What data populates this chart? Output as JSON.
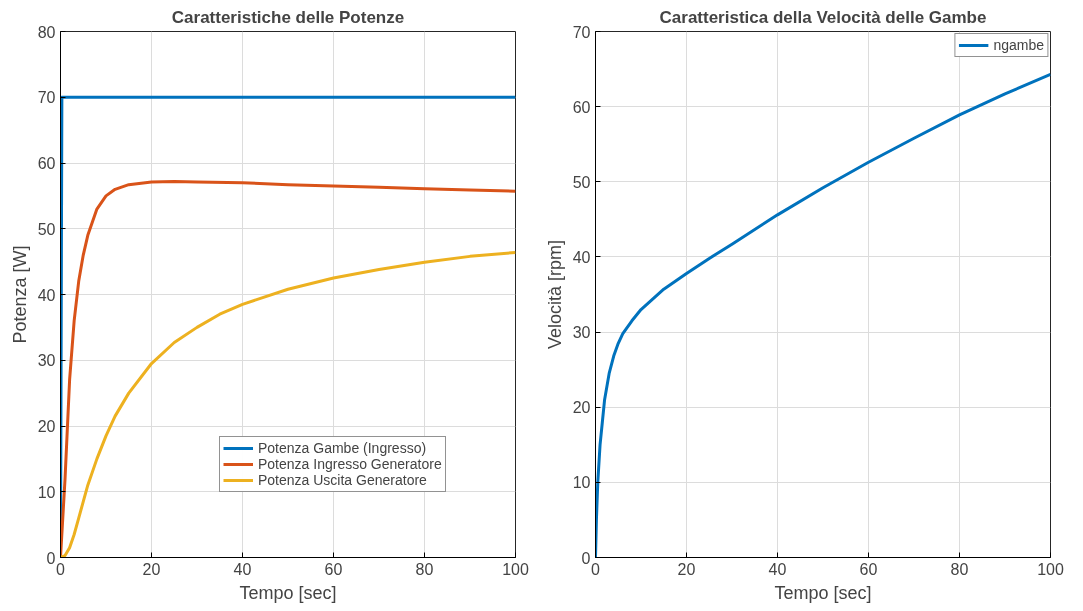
{
  "chart_data": [
    {
      "type": "line",
      "title": "Caratteristiche delle Potenze",
      "xlabel": "Tempo [sec]",
      "ylabel": "Potenza [W]",
      "xlim": [
        0,
        100
      ],
      "ylim": [
        0,
        80
      ],
      "xticks": [
        0,
        20,
        40,
        60,
        80,
        100
      ],
      "yticks": [
        0,
        10,
        20,
        30,
        40,
        50,
        60,
        70,
        80
      ],
      "grid": true,
      "legend": "right",
      "marker": "none",
      "line_style": "solid",
      "series": [
        {
          "name": "Potenza Gambe (Ingresso)",
          "color": "#0072bd",
          "x": [
            0,
            0.3,
            100
          ],
          "values": [
            0,
            70,
            70
          ]
        },
        {
          "name": "Potenza Ingresso Generatore",
          "color": "#d95319",
          "x": [
            0,
            1,
            2,
            3,
            4,
            5,
            6,
            8,
            10,
            12,
            15,
            20,
            25,
            30,
            40,
            50,
            60,
            70,
            80,
            90,
            100
          ],
          "values": [
            0,
            12,
            27,
            36,
            42,
            46,
            49,
            53,
            55,
            56,
            56.7,
            57.1,
            57.2,
            57.1,
            57,
            56.7,
            56.5,
            56.3,
            56.1,
            55.9,
            55.7
          ]
        },
        {
          "name": "Potenza Uscita Generatore",
          "color": "#edb120",
          "x": [
            0,
            1,
            2,
            3,
            4,
            5,
            6,
            8,
            10,
            12,
            15,
            20,
            25,
            30,
            35,
            40,
            50,
            60,
            70,
            80,
            90,
            100
          ],
          "values": [
            0,
            0.3,
            1.5,
            3.5,
            6,
            8.5,
            11,
            15,
            18.5,
            21.5,
            25,
            29.5,
            32.7,
            35,
            37,
            38.5,
            40.8,
            42.5,
            43.8,
            44.9,
            45.8,
            46.4
          ]
        }
      ]
    },
    {
      "type": "line",
      "title": "Caratteristica della Velocità delle Gambe",
      "xlabel": "Tempo [sec]",
      "ylabel": "Velocità [rpm]",
      "xlim": [
        0,
        100
      ],
      "ylim": [
        0,
        70
      ],
      "xticks": [
        0,
        20,
        40,
        60,
        80,
        100
      ],
      "yticks": [
        0,
        10,
        20,
        30,
        40,
        50,
        60,
        70
      ],
      "grid": true,
      "legend": "top right",
      "marker": "none",
      "line_style": "solid",
      "series": [
        {
          "name": "ngambe",
          "color": "#0072bd",
          "x": [
            0,
            0.2,
            0.5,
            1,
            1.5,
            2,
            3,
            4,
            5,
            6,
            8,
            10,
            15,
            20,
            25,
            30,
            40,
            50,
            60,
            70,
            80,
            90,
            100
          ],
          "values": [
            0,
            5,
            10,
            15,
            18,
            21,
            24.5,
            26.8,
            28.5,
            29.8,
            31.5,
            33,
            35.7,
            37.8,
            39.8,
            41.7,
            45.6,
            49.2,
            52.6,
            55.8,
            58.9,
            61.7,
            64.3
          ]
        }
      ]
    }
  ]
}
